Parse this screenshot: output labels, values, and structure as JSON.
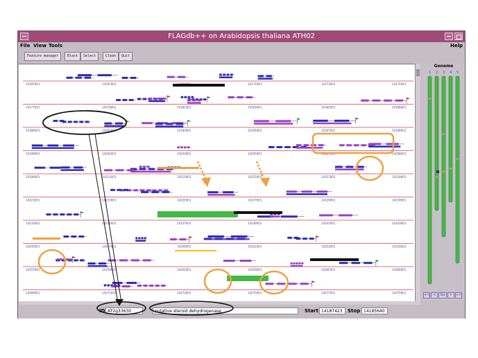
{
  "window": {
    "title": "FLAGdb++ on Arabidopsis thaliana ATH02"
  },
  "menubar": {
    "file": "File",
    "view": "View",
    "tools": "Tools",
    "help": "Help"
  },
  "toolbar": {
    "feature_manager": "Feature manager",
    "blast": "Blast",
    "select": "Select",
    "clean": "Clean",
    "quit": "Quit"
  },
  "genome": {
    "title": "Genome",
    "chromosomes": [
      "1",
      "2",
      "3",
      "4",
      "5"
    ],
    "nav_buttons": [
      "<<",
      "<",
      "Go",
      ">",
      ">>"
    ]
  },
  "map": {
    "row_scale_labels": [
      [
        "14165001",
        "14167001",
        "14169001",
        "14171001",
        "14173001",
        "14175001"
      ],
      [
        "14177001",
        "14179001",
        "14181001",
        "14183001",
        "14185001",
        "14186001"
      ],
      [
        "14189001",
        "14191001",
        "14193001",
        "14195001",
        "14197001",
        "14198001"
      ],
      [
        "14199001",
        "14201001",
        "14203001",
        "14205001",
        "14207001",
        "14208001"
      ],
      [
        "14209001",
        "14211001",
        "14213001",
        "14215001",
        "14217001",
        "14219001"
      ],
      [
        "14221001",
        "14223001",
        "14225001",
        "14227001",
        "14229001",
        "14230001"
      ],
      [
        "14233001",
        "14235001",
        "14237001",
        "14239001",
        "14241001",
        "14243001"
      ],
      [
        "14245001",
        "14247001",
        "14249001",
        "14251001",
        "14253001",
        "14255001"
      ],
      [
        "14257001",
        "14259001",
        "14261001",
        "14263001",
        "14265001",
        "14266001"
      ],
      [
        "14269001",
        "14271001",
        "14273001",
        "14275001",
        "14277001",
        "14279001"
      ]
    ]
  },
  "status": {
    "id_label": "ID",
    "id_value": "AT2g33630",
    "description": "putative steroid dehydrogenase",
    "start_label": "Start",
    "start_value": "14187423",
    "stop_label": "Stop",
    "stop_value": "14185640"
  },
  "colors": {
    "title_bar": "#a04a7a",
    "gene_blue": "#2a2ab8",
    "gene_purple": "#9a3ec8",
    "annotation_orange": "#f0a040",
    "chromosome_green": "#44b844",
    "axis_red": "#d04040"
  }
}
